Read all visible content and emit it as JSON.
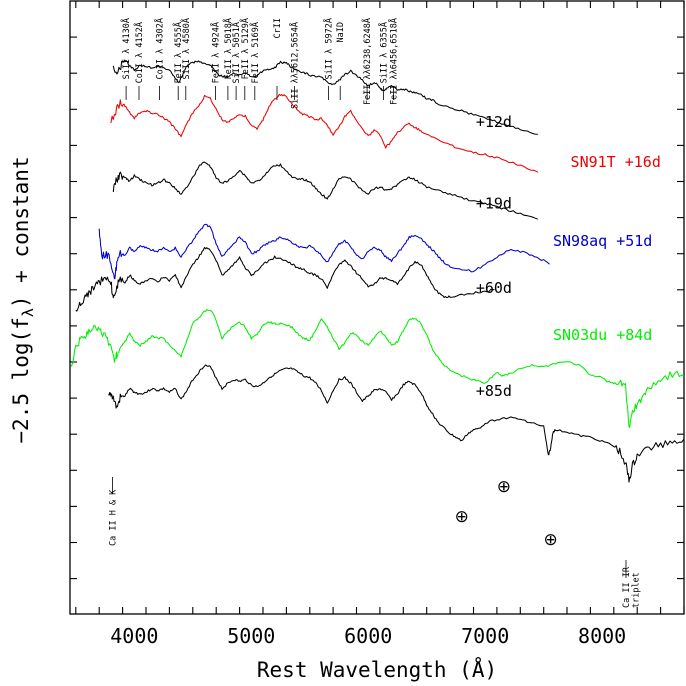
{
  "chart_data": {
    "type": "line",
    "xlabel": "Rest Wavelength (Å)",
    "ylabel": "−2.5 log(f",
    "ylabel_sub": "λ",
    "ylabel_tail": ") + constant",
    "xlim": [
      3450,
      8700
    ],
    "x_ticks": [
      4000,
      5000,
      6000,
      7000,
      8000
    ],
    "x_tick_labels": [
      "4000",
      "5000",
      "6000",
      "7000",
      "8000"
    ],
    "grid": false,
    "line_ids": [
      {
        "label": "SiII λ 4130Å",
        "x": 3930
      },
      {
        "label": "CoII λ 4152Å",
        "x": 4040
      },
      {
        "label": "CoII λ 4302Å",
        "x": 4215
      },
      {
        "label": "FeII λ 4555Å",
        "x": 4375
      },
      {
        "label": "SiII λ 4580Å",
        "x": 4440
      },
      {
        "label": "FeII λ 4924Å",
        "x": 4695
      },
      {
        "label": "FeII λ 5018Å",
        "x": 4800
      },
      {
        "label": "SiII λ 5051Å",
        "x": 4870
      },
      {
        "label": "FeII λ 5129Å",
        "x": 4945
      },
      {
        "label": "FeII λ 5169Å",
        "x": 5030
      },
      {
        "label": "CrII",
        "x": 5220
      },
      {
        "label": "SiII λλ5612,5654Å",
        "x": 5370
      },
      {
        "label": "SiII λ 5972Å",
        "x": 5660
      },
      {
        "label": "NaID",
        "x": 5760
      },
      {
        "label": "FeII λλ6238,6248Å",
        "x": 5990
      },
      {
        "label": "SiII λ 6355Å",
        "x": 6130
      },
      {
        "label": "FeII λλ6456,6518Å",
        "x": 6215
      }
    ],
    "bottom_labels": [
      {
        "label": "Ca II H & K",
        "x": 3840
      },
      {
        "label": "Ca II IR",
        "x": 8230
      },
      {
        "label": "triplet",
        "x": 8310
      }
    ],
    "telluric_symbol": "⊕",
    "telluric_x": [
      6800,
      7160,
      7560
    ],
    "series": [
      {
        "name": "+12d",
        "color": "#000000",
        "x": [
          3820,
          3860,
          3900,
          3930,
          3960,
          4000,
          4050,
          4100,
          4150,
          4200,
          4250,
          4300,
          4350,
          4380,
          4410,
          4450,
          4500,
          4550,
          4600,
          4640,
          4680,
          4720,
          4760,
          4800,
          4850,
          4900,
          4950,
          5000,
          5050,
          5100,
          5150,
          5200,
          5250,
          5300,
          5350,
          5400,
          5450,
          5500,
          5550,
          5600,
          5650,
          5700,
          5750,
          5800,
          5850,
          5900,
          5950,
          6000,
          6050,
          6100,
          6130,
          6160,
          6200,
          6250,
          6300,
          6350,
          6400,
          6450,
          6500,
          6550,
          6600,
          6700,
          6800,
          6900,
          7000,
          7100,
          7200,
          7300,
          7450
        ],
        "y": [
          0.9,
          0.95,
          0.7,
          0.65,
          0.78,
          0.92,
          0.78,
          0.82,
          0.85,
          0.8,
          0.85,
          0.92,
          1.15,
          1.25,
          1.05,
          0.8,
          0.7,
          0.68,
          0.72,
          0.75,
          0.9,
          1.05,
          1.1,
          1.1,
          1.0,
          1.05,
          1.0,
          1.1,
          1.05,
          0.95,
          0.9,
          0.85,
          0.7,
          0.72,
          0.85,
          0.95,
          1.0,
          1.05,
          1.1,
          1.12,
          1.25,
          1.3,
          1.2,
          1.05,
          0.95,
          1.05,
          1.2,
          1.35,
          1.25,
          1.4,
          1.5,
          1.4,
          1.35,
          1.45,
          1.45,
          1.5,
          1.55,
          1.6,
          1.7,
          1.75,
          1.85,
          1.95,
          2.05,
          2.15,
          2.25,
          2.35,
          2.45,
          2.55,
          2.7
        ]
      },
      {
        "name": "SN91T +16d",
        "color": "#ee0000",
        "x": [
          3800,
          3850,
          3880,
          3920,
          3960,
          4000,
          4050,
          4100,
          4150,
          4200,
          4250,
          4300,
          4350,
          4400,
          4450,
          4500,
          4550,
          4600,
          4650,
          4700,
          4750,
          4800,
          4850,
          4900,
          4950,
          5000,
          5050,
          5100,
          5150,
          5200,
          5250,
          5300,
          5350,
          5400,
          5450,
          5500,
          5550,
          5600,
          5650,
          5700,
          5750,
          5800,
          5850,
          5900,
          5950,
          6000,
          6050,
          6100,
          6150,
          6200,
          6250,
          6300,
          6350,
          6400,
          6450,
          6500,
          6600,
          6700,
          6800,
          6900,
          7000,
          7100,
          7200,
          7300,
          7450
        ],
        "y": [
          2.3,
          2.0,
          1.8,
          1.9,
          2.1,
          2.25,
          2.1,
          2.05,
          2.1,
          2.15,
          2.25,
          2.35,
          2.55,
          2.75,
          2.4,
          2.1,
          1.9,
          1.65,
          1.7,
          2.0,
          2.3,
          2.35,
          2.25,
          2.15,
          2.2,
          2.45,
          2.55,
          2.3,
          1.95,
          1.7,
          1.6,
          1.65,
          1.85,
          2.05,
          2.15,
          2.2,
          2.3,
          2.25,
          2.45,
          2.7,
          2.5,
          2.2,
          2.05,
          2.3,
          2.55,
          2.75,
          2.6,
          2.7,
          3.05,
          2.9,
          2.65,
          2.5,
          2.4,
          2.5,
          2.6,
          2.7,
          2.85,
          3.0,
          3.1,
          3.2,
          3.25,
          3.35,
          3.45,
          3.55,
          3.75
        ]
      },
      {
        "name": "+19d",
        "color": "#000000",
        "x": [
          3820,
          3850,
          3880,
          3920,
          3960,
          4000,
          4050,
          4100,
          4150,
          4200,
          4250,
          4300,
          4350,
          4400,
          4450,
          4500,
          4550,
          4600,
          4650,
          4700,
          4750,
          4800,
          4850,
          4900,
          4950,
          5000,
          5050,
          5100,
          5150,
          5200,
          5250,
          5300,
          5350,
          5400,
          5450,
          5500,
          5550,
          5600,
          5650,
          5700,
          5750,
          5800,
          5850,
          5900,
          5950,
          6000,
          6050,
          6100,
          6150,
          6200,
          6250,
          6300,
          6350,
          6400,
          6450,
          6500,
          6600,
          6700,
          6800,
          6900,
          7000,
          7100,
          7200,
          7300,
          7450
        ],
        "y": [
          4.25,
          3.95,
          3.8,
          3.9,
          4.0,
          3.85,
          3.95,
          4.05,
          4.1,
          4.05,
          3.95,
          4.05,
          4.2,
          4.35,
          4.15,
          3.9,
          3.6,
          3.45,
          3.6,
          3.9,
          4.05,
          4.0,
          3.85,
          3.7,
          3.85,
          4.05,
          4.0,
          3.9,
          3.7,
          3.55,
          3.55,
          3.7,
          3.9,
          3.95,
          3.95,
          4.0,
          4.2,
          4.35,
          4.5,
          4.2,
          3.95,
          3.85,
          3.95,
          4.1,
          4.25,
          4.35,
          4.2,
          4.15,
          4.25,
          4.2,
          4.1,
          3.95,
          3.9,
          3.95,
          4.05,
          4.15,
          4.25,
          4.35,
          4.45,
          4.55,
          4.6,
          4.7,
          4.8,
          4.9,
          5.05
        ]
      },
      {
        "name": "SN98aq +51d",
        "color": "#0000cc",
        "x": [
          3700,
          3720,
          3760,
          3800,
          3830,
          3850,
          3880,
          3920,
          3960,
          4000,
          4050,
          4100,
          4150,
          4200,
          4250,
          4300,
          4350,
          4400,
          4450,
          4500,
          4550,
          4600,
          4650,
          4700,
          4750,
          4800,
          4850,
          4900,
          4950,
          5000,
          5050,
          5100,
          5150,
          5200,
          5250,
          5300,
          5350,
          5400,
          5450,
          5500,
          5550,
          5600,
          5650,
          5700,
          5750,
          5800,
          5850,
          5900,
          5950,
          6000,
          6050,
          6100,
          6150,
          6200,
          6250,
          6300,
          6350,
          6400,
          6450,
          6500,
          6550,
          6600,
          6650,
          6700,
          6800,
          6900,
          7000,
          7100,
          7200,
          7300,
          7400,
          7500,
          7550
        ],
        "y": [
          5.3,
          6.1,
          6.0,
          6.2,
          6.7,
          6.3,
          6.0,
          6.05,
          5.85,
          5.95,
          5.8,
          5.85,
          5.9,
          5.95,
          5.85,
          5.95,
          5.85,
          6.1,
          5.85,
          5.65,
          5.4,
          5.2,
          5.25,
          5.75,
          6.1,
          5.9,
          5.75,
          5.55,
          5.7,
          6.0,
          5.95,
          5.8,
          5.7,
          5.65,
          5.55,
          5.6,
          5.7,
          5.8,
          5.85,
          5.8,
          5.9,
          6.05,
          6.25,
          6.0,
          5.75,
          5.65,
          5.8,
          6.05,
          6.15,
          5.95,
          5.85,
          5.9,
          6.1,
          6.2,
          6.0,
          5.8,
          5.55,
          5.5,
          5.6,
          5.75,
          5.9,
          6.1,
          6.25,
          6.35,
          6.45,
          6.5,
          6.3,
          6.1,
          5.9,
          5.95,
          6.05,
          6.2,
          6.3
        ]
      },
      {
        "name": "+60d",
        "color": "#000000",
        "x": [
          3500,
          3540,
          3580,
          3620,
          3660,
          3700,
          3750,
          3800,
          3820,
          3850,
          3880,
          3920,
          3960,
          4000,
          4050,
          4100,
          4150,
          4200,
          4250,
          4300,
          4350,
          4400,
          4450,
          4500,
          4550,
          4600,
          4650,
          4700,
          4750,
          4800,
          4850,
          4900,
          4950,
          5000,
          5050,
          5100,
          5150,
          5200,
          5250,
          5300,
          5350,
          5400,
          5450,
          5500,
          5550,
          5600,
          5650,
          5700,
          5750,
          5800,
          5850,
          5900,
          5950,
          6000,
          6050,
          6100,
          6150,
          6200,
          6250,
          6300,
          6350,
          6400,
          6450,
          6500,
          6550,
          6600,
          6650,
          6700,
          6800,
          6900,
          7000,
          7080
        ],
        "y": [
          7.6,
          7.4,
          7.2,
          7.1,
          6.9,
          6.8,
          6.7,
          6.8,
          7.3,
          6.9,
          6.75,
          6.8,
          6.6,
          6.75,
          6.85,
          6.75,
          6.7,
          6.8,
          6.65,
          6.75,
          6.6,
          6.95,
          6.6,
          6.3,
          6.1,
          5.85,
          5.9,
          6.2,
          6.6,
          6.45,
          6.3,
          6.1,
          6.4,
          6.6,
          6.5,
          6.3,
          6.2,
          6.1,
          6.15,
          6.2,
          6.3,
          6.4,
          6.45,
          6.55,
          6.6,
          6.7,
          6.95,
          6.6,
          6.3,
          6.2,
          6.35,
          6.55,
          6.7,
          6.9,
          6.85,
          6.7,
          6.7,
          6.75,
          6.85,
          6.65,
          6.4,
          6.25,
          6.3,
          6.6,
          6.9,
          7.1,
          7.2,
          7.2,
          7.15,
          7.1,
          7.05,
          7.0
        ]
      },
      {
        "name": "SN03du +84d",
        "color": "#00ee00",
        "x": [
          3460,
          3500,
          3540,
          3580,
          3620,
          3660,
          3700,
          3750,
          3800,
          3830,
          3850,
          3880,
          3920,
          3960,
          4000,
          4050,
          4100,
          4150,
          4200,
          4250,
          4300,
          4350,
          4400,
          4450,
          4500,
          4550,
          4600,
          4650,
          4700,
          4750,
          4800,
          4850,
          4900,
          4950,
          5000,
          5050,
          5100,
          5150,
          5200,
          5250,
          5300,
          5350,
          5400,
          5450,
          5500,
          5550,
          5600,
          5650,
          5700,
          5750,
          5800,
          5850,
          5900,
          5950,
          6000,
          6050,
          6100,
          6150,
          6200,
          6250,
          6300,
          6350,
          6400,
          6450,
          6500,
          6550,
          6600,
          6650,
          6700,
          6800,
          6900,
          6950,
          7000,
          7050,
          7100,
          7150,
          7200,
          7300,
          7400,
          7500,
          7600,
          7700,
          7800,
          7900,
          8000,
          8050,
          8100,
          8150,
          8200,
          8230,
          8260,
          8300,
          8350,
          8400,
          8500,
          8600,
          8700
        ],
        "y": [
          9.2,
          8.6,
          8.4,
          8.3,
          8.1,
          8.0,
          8.1,
          8.3,
          8.6,
          9.0,
          8.8,
          8.55,
          8.45,
          8.2,
          8.45,
          8.55,
          8.45,
          8.3,
          8.35,
          8.35,
          8.55,
          8.7,
          8.85,
          8.4,
          7.95,
          7.8,
          7.6,
          7.55,
          7.85,
          8.35,
          8.15,
          8.0,
          7.9,
          8.05,
          8.35,
          8.25,
          8.0,
          7.9,
          7.95,
          7.95,
          8.0,
          8.05,
          8.25,
          8.35,
          8.4,
          8.15,
          7.8,
          8.05,
          8.35,
          8.65,
          8.5,
          8.2,
          8.25,
          8.45,
          8.55,
          8.35,
          8.15,
          8.3,
          8.55,
          8.45,
          8.15,
          7.85,
          7.8,
          7.95,
          8.25,
          8.65,
          8.9,
          9.1,
          9.25,
          9.4,
          9.5,
          9.55,
          9.6,
          9.45,
          9.3,
          9.4,
          9.35,
          9.2,
          9.1,
          9.15,
          9.05,
          9.0,
          9.1,
          9.35,
          9.45,
          9.55,
          9.6,
          9.55,
          9.7,
          10.8,
          10.4,
          10.2,
          10.0,
          9.7,
          9.5,
          9.35,
          9.4
        ]
      },
      {
        "name": "+85d",
        "color": "#000000",
        "x": [
          3780,
          3800,
          3820,
          3850,
          3880,
          3920,
          3960,
          4000,
          4050,
          4100,
          4150,
          4200,
          4250,
          4300,
          4350,
          4400,
          4450,
          4500,
          4550,
          4600,
          4650,
          4700,
          4750,
          4800,
          4850,
          4900,
          4950,
          5000,
          5050,
          5100,
          5150,
          5200,
          5250,
          5300,
          5350,
          5400,
          5450,
          5500,
          5550,
          5600,
          5650,
          5700,
          5750,
          5800,
          5850,
          5900,
          5950,
          6000,
          6050,
          6100,
          6150,
          6200,
          6250,
          6300,
          6350,
          6400,
          6450,
          6500,
          6550,
          6600,
          6650,
          6700,
          6750,
          6800,
          6850,
          6900,
          6950,
          7000,
          7100,
          7200,
          7300,
          7400,
          7500,
          7540,
          7560,
          7580,
          7600,
          7700,
          7800,
          7900,
          8000,
          8100,
          8150,
          8200,
          8230,
          8260,
          8300,
          8400,
          8500,
          8600,
          8700
        ],
        "y": [
          10.0,
          9.9,
          10.0,
          10.3,
          10.0,
          9.95,
          9.75,
          9.85,
          9.9,
          9.85,
          9.75,
          9.8,
          9.75,
          9.85,
          9.75,
          10.05,
          9.8,
          9.5,
          9.3,
          9.1,
          9.15,
          9.45,
          9.75,
          9.6,
          9.5,
          9.55,
          9.5,
          9.65,
          9.7,
          9.6,
          9.45,
          9.35,
          9.25,
          9.2,
          9.2,
          9.3,
          9.4,
          9.45,
          9.6,
          9.8,
          10.15,
          9.8,
          9.5,
          9.45,
          9.6,
          9.85,
          10.1,
          9.95,
          9.8,
          9.75,
          9.85,
          10.05,
          9.9,
          9.65,
          9.55,
          9.65,
          9.85,
          10.2,
          10.45,
          10.7,
          10.85,
          11.0,
          11.1,
          11.2,
          11.0,
          10.9,
          10.85,
          10.7,
          10.6,
          10.55,
          10.6,
          10.7,
          10.8,
          11.6,
          11.4,
          10.95,
          10.9,
          10.95,
          11.05,
          11.1,
          11.2,
          11.35,
          11.5,
          11.8,
          12.3,
          11.9,
          11.6,
          11.4,
          11.3,
          11.2,
          11.15
        ]
      }
    ],
    "series_label_x": [
      6920,
      7730,
      6920,
      7580,
      6920,
      7580,
      6920
    ],
    "series_label_y": [
      2.5,
      3.6,
      4.75,
      5.8,
      7.1,
      8.4,
      9.95
    ],
    "ylim": [
      -1.0,
      16.0
    ]
  }
}
